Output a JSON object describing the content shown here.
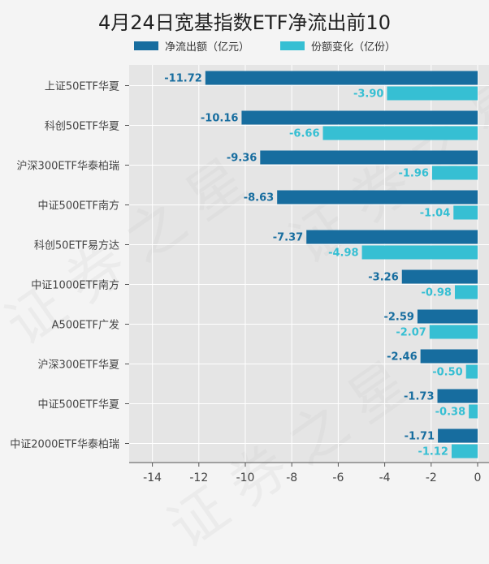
{
  "chart_data": {
    "type": "bar",
    "orientation": "horizontal",
    "title": "4月24日宽基指数ETF净流出前10",
    "categories": [
      "上证50ETF华夏",
      "科创50ETF华夏",
      "沪深300ETF华泰柏瑞",
      "中证500ETF南方",
      "科创50ETF易方达",
      "中证1000ETF南方",
      "A500ETF广发",
      "沪深300ETF华夏",
      "中证500ETF华夏",
      "中证2000ETF华泰柏瑞"
    ],
    "series": [
      {
        "name": "净流出额（亿元）",
        "color": "#176d9f",
        "values": [
          -11.72,
          -10.16,
          -9.36,
          -8.63,
          -7.37,
          -3.26,
          -2.59,
          -2.46,
          -1.73,
          -1.71
        ],
        "labels": [
          "-11.72",
          "-10.16",
          "-9.36",
          "-8.63",
          "-7.37",
          "-3.26",
          "-2.59",
          "-2.46",
          "-1.73",
          "-1.71"
        ]
      },
      {
        "name": "份额变化（亿份）",
        "color": "#36bfd3",
        "values": [
          -3.9,
          -6.66,
          -1.96,
          -1.04,
          -4.98,
          -0.98,
          -2.07,
          -0.5,
          -0.38,
          -1.12
        ],
        "labels": [
          "-3.90",
          "-6.66",
          "-1.96",
          "-1.04",
          "-4.98",
          "-0.98",
          "-2.07",
          "-0.50",
          "-0.38",
          "-1.12"
        ]
      }
    ],
    "xlim": [
      -15,
      0
    ],
    "xticks": [
      "-14",
      "-12",
      "-10",
      "-8",
      "-6",
      "-4",
      "-2",
      "0"
    ],
    "xtick_values": [
      -14,
      -12,
      -10,
      -8,
      -6,
      -4,
      -2,
      0
    ],
    "grid": true,
    "legend": "top-center",
    "watermark": "证券之星"
  }
}
